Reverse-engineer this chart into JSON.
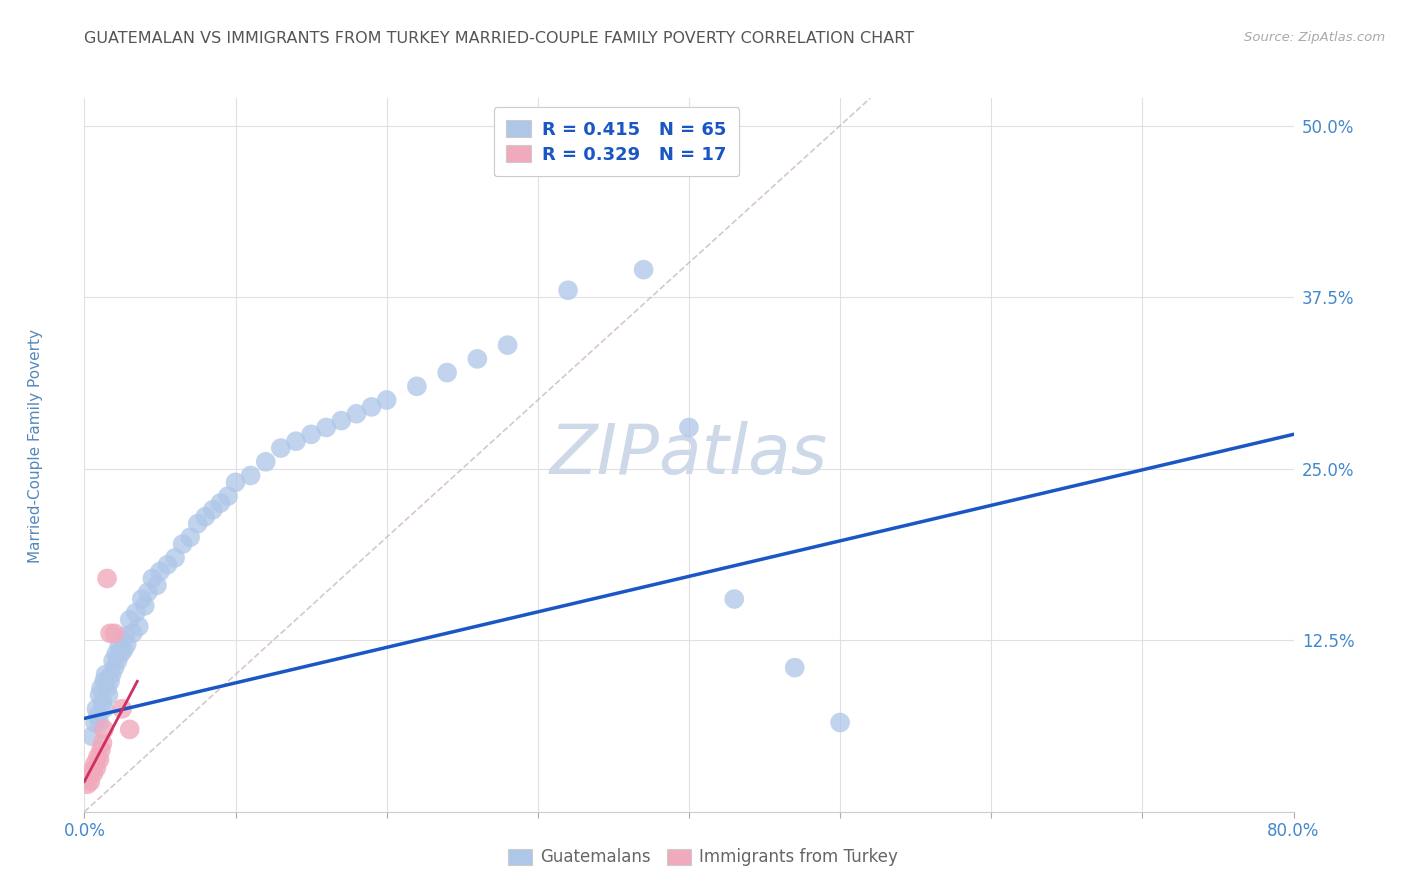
{
  "title": "GUATEMALAN VS IMMIGRANTS FROM TURKEY MARRIED-COUPLE FAMILY POVERTY CORRELATION CHART",
  "source": "Source: ZipAtlas.com",
  "ylabel": "Married-Couple Family Poverty",
  "xlim": [
    0.0,
    0.8
  ],
  "ylim": [
    0.0,
    0.52
  ],
  "xticks": [
    0.0,
    0.1,
    0.2,
    0.3,
    0.4,
    0.5,
    0.6,
    0.7,
    0.8
  ],
  "xticklabels": [
    "0.0%",
    "",
    "",
    "",
    "",
    "",
    "",
    "",
    "80.0%"
  ],
  "yticks": [
    0.0,
    0.125,
    0.25,
    0.375,
    0.5
  ],
  "yticklabels": [
    "",
    "12.5%",
    "25.0%",
    "37.5%",
    "50.0%"
  ],
  "background_color": "#ffffff",
  "grid_color": "#e0e0e0",
  "watermark_text": "ZIPatlas",
  "watermark_color": "#cdd8e8",
  "blue_color": "#aec6e8",
  "blue_line_color": "#1a56c4",
  "pink_color": "#f0aabc",
  "pink_line_color": "#d03060",
  "diag_line_color": "#ccbbbb",
  "R_blue": "0.415",
  "N_blue": "65",
  "R_pink": "0.329",
  "N_pink": "17",
  "legend_label_blue": "Guatemalans",
  "legend_label_pink": "Immigrants from Turkey",
  "title_color": "#555555",
  "tick_label_color": "#4488cc",
  "ylabel_color": "#5588bb",
  "blue_scatter_x": [
    0.005,
    0.007,
    0.008,
    0.009,
    0.01,
    0.01,
    0.011,
    0.012,
    0.013,
    0.013,
    0.014,
    0.015,
    0.016,
    0.017,
    0.018,
    0.019,
    0.02,
    0.021,
    0.022,
    0.023,
    0.024,
    0.025,
    0.026,
    0.027,
    0.028,
    0.03,
    0.032,
    0.034,
    0.036,
    0.038,
    0.04,
    0.042,
    0.045,
    0.048,
    0.05,
    0.055,
    0.06,
    0.065,
    0.07,
    0.075,
    0.08,
    0.085,
    0.09,
    0.095,
    0.1,
    0.11,
    0.12,
    0.13,
    0.14,
    0.15,
    0.16,
    0.17,
    0.18,
    0.19,
    0.2,
    0.22,
    0.24,
    0.26,
    0.28,
    0.32,
    0.37,
    0.4,
    0.43,
    0.47,
    0.5
  ],
  "blue_scatter_y": [
    0.055,
    0.065,
    0.075,
    0.07,
    0.085,
    0.065,
    0.09,
    0.08,
    0.095,
    0.075,
    0.1,
    0.09,
    0.085,
    0.095,
    0.1,
    0.11,
    0.105,
    0.115,
    0.11,
    0.12,
    0.115,
    0.125,
    0.118,
    0.128,
    0.122,
    0.14,
    0.13,
    0.145,
    0.135,
    0.155,
    0.15,
    0.16,
    0.17,
    0.165,
    0.175,
    0.18,
    0.185,
    0.195,
    0.2,
    0.21,
    0.215,
    0.22,
    0.225,
    0.23,
    0.24,
    0.245,
    0.255,
    0.265,
    0.27,
    0.275,
    0.28,
    0.285,
    0.29,
    0.295,
    0.3,
    0.31,
    0.32,
    0.33,
    0.34,
    0.38,
    0.395,
    0.28,
    0.155,
    0.105,
    0.065
  ],
  "pink_scatter_x": [
    0.002,
    0.003,
    0.004,
    0.005,
    0.006,
    0.007,
    0.008,
    0.009,
    0.01,
    0.011,
    0.012,
    0.013,
    0.015,
    0.017,
    0.02,
    0.025,
    0.03
  ],
  "pink_scatter_y": [
    0.02,
    0.025,
    0.022,
    0.03,
    0.028,
    0.035,
    0.032,
    0.04,
    0.038,
    0.045,
    0.05,
    0.06,
    0.17,
    0.13,
    0.13,
    0.075,
    0.06
  ],
  "blue_line_x0": 0.0,
  "blue_line_x1": 0.8,
  "blue_line_y0": 0.068,
  "blue_line_y1": 0.275,
  "pink_line_x0": 0.0,
  "pink_line_x1": 0.035,
  "pink_line_y0": 0.022,
  "pink_line_y1": 0.095,
  "diag_line_x0": 0.0,
  "diag_line_x1": 0.52,
  "diag_line_y0": 0.0,
  "diag_line_y1": 0.52
}
